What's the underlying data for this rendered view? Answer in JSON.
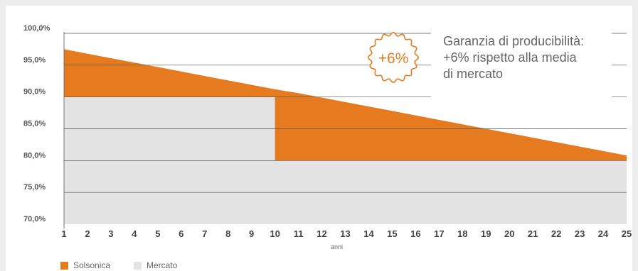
{
  "chart_data": {
    "type": "area",
    "x": [
      1,
      2,
      3,
      4,
      5,
      6,
      7,
      8,
      9,
      10,
      11,
      12,
      13,
      14,
      15,
      16,
      17,
      18,
      19,
      20,
      21,
      22,
      23,
      24,
      25
    ],
    "xlabel": "anni",
    "ylabel": "",
    "ylim": [
      70,
      100
    ],
    "yticks": [
      "100,0%",
      "95,0%",
      "90,0%",
      "85,0%",
      "80,0%",
      "75,0%",
      "70,0%"
    ],
    "ytick_values": [
      100,
      95,
      90,
      85,
      80,
      75,
      70
    ],
    "series": [
      {
        "name": "Solsonica",
        "color": "#e67a1e",
        "values": [
          97.5,
          96.8,
          96.1,
          95.4,
          94.7,
          94.0,
          93.3,
          92.6,
          91.9,
          91.2,
          90.6,
          89.9,
          89.2,
          88.5,
          87.8,
          87.1,
          86.4,
          85.7,
          85.0,
          84.3,
          83.6,
          82.9,
          82.2,
          81.5,
          80.8
        ]
      },
      {
        "name": "Mercato",
        "color": "#e3e3e3",
        "values": [
          90,
          90,
          90,
          90,
          90,
          90,
          90,
          90,
          90,
          90,
          80,
          80,
          80,
          80,
          80,
          80,
          80,
          80,
          80,
          80,
          80,
          80,
          80,
          80,
          80
        ]
      }
    ],
    "grid": true,
    "legend": "bottom-left",
    "annotation": {
      "badge": "+6%",
      "lines": [
        "Garanzia di producibilità:",
        "+6% rispetto alla media",
        "di mercato"
      ]
    }
  }
}
